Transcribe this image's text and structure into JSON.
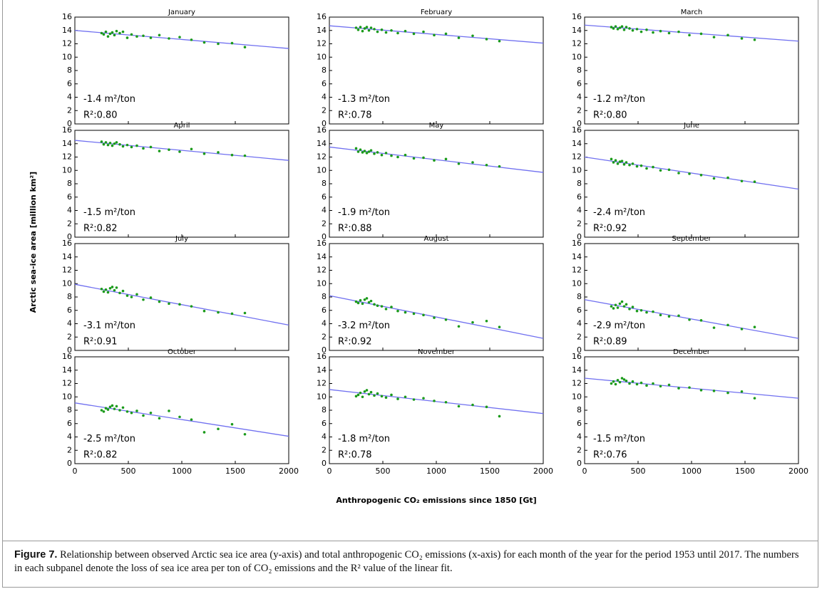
{
  "figure": {
    "ylabel": "Arctic sea-ice area [million km²]",
    "xlabel": "Anthropogenic CO₂ emissions since 1850 [Gt]",
    "caption": {
      "label": "Figure 7.",
      "text": "Relationship between observed Arctic sea ice area (y-axis) and total anthropogenic CO₂ emissions (x-axis) for each month of the year for the period 1953 until 2017. The numbers in each subpanel denote the loss of sea ice area per ton of CO₂ emissions and the R² value of the linear fit."
    }
  },
  "chart_data": [
    {
      "type": "scatter",
      "title": "January",
      "annotations": [
        "-1.4 m²/ton",
        "R²:0.80"
      ],
      "color": "#1a9a1a",
      "x": [
        250,
        270,
        290,
        310,
        330,
        350,
        370,
        390,
        420,
        450,
        490,
        530,
        580,
        640,
        710,
        790,
        880,
        980,
        1090,
        1210,
        1340,
        1470,
        1590
      ],
      "values": [
        13.6,
        13.4,
        13.8,
        13.1,
        13.5,
        13.7,
        13.3,
        13.9,
        13.6,
        13.8,
        12.9,
        13.4,
        13.1,
        13.2,
        12.9,
        13.3,
        12.8,
        13.0,
        12.6,
        12.2,
        12.0,
        12.1,
        11.5
      ],
      "fit": {
        "x": [
          0,
          2000
        ],
        "values": [
          14.0,
          11.3
        ],
        "color": "#7070f0"
      },
      "xlim": [
        0,
        2000
      ],
      "xticks": [
        0,
        500,
        1000,
        1500,
        2000
      ],
      "ylim": [
        0,
        16
      ],
      "yticks": [
        0,
        2,
        4,
        6,
        8,
        10,
        12,
        14,
        16
      ]
    },
    {
      "type": "scatter",
      "title": "February",
      "annotations": [
        "-1.3 m²/ton",
        "R²:0.78"
      ],
      "color": "#1a9a1a",
      "x": [
        250,
        270,
        290,
        310,
        330,
        350,
        370,
        390,
        420,
        450,
        490,
        530,
        580,
        640,
        710,
        790,
        880,
        980,
        1090,
        1210,
        1340,
        1470,
        1590
      ],
      "values": [
        14.4,
        14.1,
        14.5,
        13.9,
        14.3,
        14.5,
        14.0,
        14.4,
        14.2,
        13.8,
        14.1,
        13.7,
        14.0,
        13.6,
        13.9,
        13.5,
        13.8,
        13.3,
        13.5,
        12.9,
        13.2,
        12.7,
        12.4
      ],
      "fit": {
        "x": [
          0,
          2000
        ],
        "values": [
          14.7,
          12.1
        ],
        "color": "#7070f0"
      },
      "xlim": [
        0,
        2000
      ],
      "xticks": [
        0,
        500,
        1000,
        1500,
        2000
      ],
      "ylim": [
        0,
        16
      ],
      "yticks": [
        0,
        2,
        4,
        6,
        8,
        10,
        12,
        14,
        16
      ]
    },
    {
      "type": "scatter",
      "title": "March",
      "annotations": [
        "-1.2 m²/ton",
        "R²:0.80"
      ],
      "color": "#1a9a1a",
      "x": [
        250,
        270,
        290,
        310,
        330,
        350,
        370,
        390,
        420,
        450,
        490,
        530,
        580,
        640,
        710,
        790,
        880,
        980,
        1090,
        1210,
        1340,
        1470,
        1590
      ],
      "values": [
        14.5,
        14.3,
        14.6,
        14.2,
        14.4,
        14.6,
        14.1,
        14.5,
        14.3,
        14.0,
        14.2,
        13.8,
        14.1,
        13.7,
        13.9,
        13.6,
        13.8,
        13.3,
        13.5,
        13.0,
        13.3,
        12.8,
        12.6
      ],
      "fit": {
        "x": [
          0,
          2000
        ],
        "values": [
          14.8,
          12.4
        ],
        "color": "#7070f0"
      },
      "xlim": [
        0,
        2000
      ],
      "xticks": [
        0,
        500,
        1000,
        1500,
        2000
      ],
      "ylim": [
        0,
        16
      ],
      "yticks": [
        0,
        2,
        4,
        6,
        8,
        10,
        12,
        14,
        16
      ]
    },
    {
      "type": "scatter",
      "title": "April",
      "annotations": [
        "-1.5 m²/ton",
        "R²:0.82"
      ],
      "color": "#1a9a1a",
      "x": [
        250,
        270,
        290,
        310,
        330,
        350,
        370,
        390,
        420,
        450,
        490,
        530,
        580,
        640,
        710,
        790,
        880,
        980,
        1090,
        1210,
        1340,
        1470,
        1590
      ],
      "values": [
        14.3,
        13.9,
        14.2,
        13.8,
        14.1,
        13.7,
        14.0,
        14.2,
        13.9,
        13.6,
        13.8,
        13.5,
        13.7,
        13.3,
        13.5,
        12.9,
        13.1,
        12.8,
        13.2,
        12.5,
        12.7,
        12.3,
        12.2
      ],
      "fit": {
        "x": [
          0,
          2000
        ],
        "values": [
          14.5,
          11.5
        ],
        "color": "#7070f0"
      },
      "xlim": [
        0,
        2000
      ],
      "xticks": [
        0,
        500,
        1000,
        1500,
        2000
      ],
      "ylim": [
        0,
        16
      ],
      "yticks": [
        0,
        2,
        4,
        6,
        8,
        10,
        12,
        14,
        16
      ]
    },
    {
      "type": "scatter",
      "title": "May",
      "annotations": [
        "-1.9 m²/ton",
        "R²:0.88"
      ],
      "color": "#1a9a1a",
      "x": [
        250,
        270,
        290,
        310,
        330,
        350,
        370,
        390,
        420,
        450,
        490,
        530,
        580,
        640,
        710,
        790,
        880,
        980,
        1090,
        1210,
        1340,
        1470,
        1590
      ],
      "values": [
        13.3,
        12.8,
        13.1,
        12.7,
        12.9,
        12.6,
        12.8,
        13.0,
        12.5,
        12.7,
        12.3,
        12.6,
        12.2,
        12.0,
        12.3,
        11.8,
        11.9,
        11.5,
        11.7,
        11.0,
        11.2,
        10.8,
        10.6
      ],
      "fit": {
        "x": [
          0,
          2000
        ],
        "values": [
          13.5,
          9.7
        ],
        "color": "#7070f0"
      },
      "xlim": [
        0,
        2000
      ],
      "xticks": [
        0,
        500,
        1000,
        1500,
        2000
      ],
      "ylim": [
        0,
        16
      ],
      "yticks": [
        0,
        2,
        4,
        6,
        8,
        10,
        12,
        14,
        16
      ]
    },
    {
      "type": "scatter",
      "title": "June",
      "annotations": [
        "-2.4 m²/ton",
        "R²:0.92"
      ],
      "color": "#1a9a1a",
      "x": [
        250,
        270,
        290,
        310,
        330,
        350,
        370,
        390,
        420,
        450,
        490,
        530,
        580,
        640,
        710,
        790,
        880,
        980,
        1090,
        1210,
        1340,
        1470,
        1590
      ],
      "values": [
        11.7,
        11.2,
        11.5,
        11.0,
        11.3,
        11.4,
        10.9,
        11.2,
        10.8,
        11.0,
        10.6,
        10.7,
        10.3,
        10.5,
        10.0,
        10.1,
        9.6,
        9.5,
        9.3,
        8.8,
        8.9,
        8.4,
        8.3
      ],
      "fit": {
        "x": [
          0,
          2000
        ],
        "values": [
          12.0,
          7.2
        ],
        "color": "#7070f0"
      },
      "xlim": [
        0,
        2000
      ],
      "xticks": [
        0,
        500,
        1000,
        1500,
        2000
      ],
      "ylim": [
        0,
        16
      ],
      "yticks": [
        0,
        2,
        4,
        6,
        8,
        10,
        12,
        14,
        16
      ]
    },
    {
      "type": "scatter",
      "title": "July",
      "annotations": [
        "-3.1 m²/ton",
        "R²:0.91"
      ],
      "color": "#1a9a1a",
      "x": [
        250,
        270,
        290,
        310,
        330,
        350,
        370,
        390,
        420,
        450,
        490,
        530,
        580,
        640,
        710,
        790,
        880,
        980,
        1090,
        1210,
        1340,
        1470,
        1590
      ],
      "values": [
        9.2,
        8.8,
        9.1,
        8.7,
        9.3,
        9.5,
        9.0,
        9.4,
        8.6,
        8.9,
        8.2,
        8.0,
        8.4,
        7.6,
        7.9,
        7.3,
        7.0,
        6.9,
        6.6,
        5.9,
        5.7,
        5.5,
        5.6
      ],
      "fit": {
        "x": [
          0,
          2000
        ],
        "values": [
          9.9,
          3.8
        ],
        "color": "#7070f0"
      },
      "xlim": [
        0,
        2000
      ],
      "xticks": [
        0,
        500,
        1000,
        1500,
        2000
      ],
      "ylim": [
        0,
        16
      ],
      "yticks": [
        0,
        2,
        4,
        6,
        8,
        10,
        12,
        14,
        16
      ]
    },
    {
      "type": "scatter",
      "title": "August",
      "annotations": [
        "-3.2 m²/ton",
        "R²:0.92"
      ],
      "color": "#1a9a1a",
      "x": [
        250,
        270,
        290,
        310,
        330,
        350,
        370,
        390,
        420,
        450,
        490,
        530,
        580,
        640,
        710,
        790,
        880,
        980,
        1090,
        1210,
        1340,
        1470,
        1590
      ],
      "values": [
        7.3,
        7.1,
        7.5,
        7.0,
        7.6,
        7.8,
        7.2,
        7.4,
        6.9,
        6.7,
        6.6,
        6.2,
        6.5,
        5.9,
        5.7,
        5.5,
        5.3,
        4.9,
        4.6,
        3.6,
        4.2,
        4.4,
        3.5
      ],
      "fit": {
        "x": [
          0,
          2000
        ],
        "values": [
          8.2,
          1.8
        ],
        "color": "#7070f0"
      },
      "xlim": [
        0,
        2000
      ],
      "xticks": [
        0,
        500,
        1000,
        1500,
        2000
      ],
      "ylim": [
        0,
        16
      ],
      "yticks": [
        0,
        2,
        4,
        6,
        8,
        10,
        12,
        14,
        16
      ]
    },
    {
      "type": "scatter",
      "title": "September",
      "annotations": [
        "-2.9 m²/ton",
        "R²:0.89"
      ],
      "color": "#1a9a1a",
      "x": [
        250,
        270,
        290,
        310,
        330,
        350,
        370,
        390,
        420,
        450,
        490,
        530,
        580,
        640,
        710,
        790,
        880,
        980,
        1090,
        1210,
        1340,
        1470,
        1590
      ],
      "values": [
        6.6,
        6.3,
        6.8,
        6.4,
        7.0,
        7.3,
        6.6,
        6.9,
        6.2,
        6.5,
        5.9,
        6.0,
        5.7,
        5.8,
        5.3,
        5.1,
        5.2,
        4.6,
        4.5,
        3.4,
        3.8,
        3.2,
        3.5
      ],
      "fit": {
        "x": [
          0,
          2000
        ],
        "values": [
          7.6,
          1.8
        ],
        "color": "#7070f0"
      },
      "xlim": [
        0,
        2000
      ],
      "xticks": [
        0,
        500,
        1000,
        1500,
        2000
      ],
      "ylim": [
        0,
        16
      ],
      "yticks": [
        0,
        2,
        4,
        6,
        8,
        10,
        12,
        14,
        16
      ]
    },
    {
      "type": "scatter",
      "title": "October",
      "annotations": [
        "-2.5 m²/ton",
        "R²:0.82"
      ],
      "color": "#1a9a1a",
      "x": [
        250,
        270,
        290,
        310,
        330,
        350,
        370,
        390,
        420,
        450,
        490,
        530,
        580,
        640,
        710,
        790,
        880,
        980,
        1090,
        1210,
        1340,
        1470,
        1590
      ],
      "values": [
        8.0,
        7.8,
        8.3,
        8.1,
        8.5,
        8.7,
        8.2,
        8.6,
        8.0,
        8.4,
        7.8,
        7.6,
        7.9,
        7.2,
        7.6,
        6.8,
        7.9,
        7.0,
        6.6,
        4.7,
        5.2,
        5.9,
        4.4
      ],
      "fit": {
        "x": [
          0,
          2000
        ],
        "values": [
          9.1,
          4.1
        ],
        "color": "#7070f0"
      },
      "xlim": [
        0,
        2000
      ],
      "xticks": [
        0,
        500,
        1000,
        1500,
        2000
      ],
      "ylim": [
        0,
        16
      ],
      "yticks": [
        0,
        2,
        4,
        6,
        8,
        10,
        12,
        14,
        16
      ]
    },
    {
      "type": "scatter",
      "title": "November",
      "annotations": [
        "-1.8 m²/ton",
        "R²:0.78"
      ],
      "color": "#1a9a1a",
      "x": [
        250,
        270,
        290,
        310,
        330,
        350,
        370,
        390,
        420,
        450,
        490,
        530,
        580,
        640,
        710,
        790,
        880,
        980,
        1090,
        1210,
        1340,
        1470,
        1590
      ],
      "values": [
        10.1,
        10.3,
        10.6,
        10.0,
        10.8,
        11.0,
        10.4,
        10.7,
        10.2,
        10.5,
        10.1,
        9.9,
        10.3,
        9.7,
        10.0,
        9.6,
        9.8,
        9.4,
        9.2,
        8.6,
        8.8,
        8.5,
        7.1
      ],
      "fit": {
        "x": [
          0,
          2000
        ],
        "values": [
          11.1,
          7.5
        ],
        "color": "#7070f0"
      },
      "xlim": [
        0,
        2000
      ],
      "xticks": [
        0,
        500,
        1000,
        1500,
        2000
      ],
      "ylim": [
        0,
        16
      ],
      "yticks": [
        0,
        2,
        4,
        6,
        8,
        10,
        12,
        14,
        16
      ]
    },
    {
      "type": "scatter",
      "title": "December",
      "annotations": [
        "-1.5 m²/ton",
        "R²:0.76"
      ],
      "color": "#1a9a1a",
      "x": [
        250,
        270,
        290,
        310,
        330,
        350,
        370,
        390,
        420,
        450,
        490,
        530,
        580,
        640,
        710,
        790,
        880,
        980,
        1090,
        1210,
        1340,
        1470,
        1590
      ],
      "values": [
        12.0,
        12.3,
        11.9,
        12.5,
        12.2,
        12.8,
        12.6,
        12.4,
        12.0,
        12.3,
        11.9,
        12.1,
        11.7,
        12.0,
        11.6,
        11.8,
        11.3,
        11.4,
        11.0,
        10.9,
        10.6,
        10.8,
        9.8
      ],
      "fit": {
        "x": [
          0,
          2000
        ],
        "values": [
          12.8,
          9.8
        ],
        "color": "#7070f0"
      },
      "xlim": [
        0,
        2000
      ],
      "xticks": [
        0,
        500,
        1000,
        1500,
        2000
      ],
      "ylim": [
        0,
        16
      ],
      "yticks": [
        0,
        2,
        4,
        6,
        8,
        10,
        12,
        14,
        16
      ]
    }
  ]
}
